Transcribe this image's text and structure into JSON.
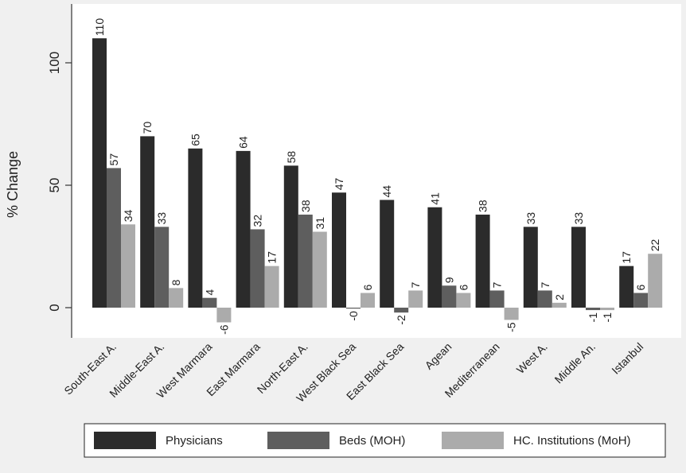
{
  "chart_data": {
    "type": "bar",
    "ylabel": "% Change",
    "ylim": [
      -12,
      120
    ],
    "yticks": [
      0,
      50,
      100
    ],
    "grid": false,
    "legend_position": "bottom",
    "categories": [
      "South-East A.",
      "Middle-East A.",
      "West Marmara",
      "East Marmara",
      "North-East A.",
      "West Black Sea",
      "East Black Sea",
      "Agean",
      "Mediterranean",
      "West A.",
      "Middle An.",
      "Istanbul"
    ],
    "series": [
      {
        "name": "Physicians",
        "color": "#2b2b2b",
        "values": [
          110,
          70,
          65,
          64,
          58,
          47,
          44,
          41,
          38,
          33,
          33,
          17
        ],
        "labels": [
          "110",
          "70",
          "65",
          "64",
          "58",
          "47",
          "44",
          "41",
          "38",
          "33",
          "33",
          "17"
        ]
      },
      {
        "name": "Beds (MOH)",
        "color": "#5e5e5e",
        "values": [
          57,
          33,
          4,
          32,
          38,
          -0.4,
          -2,
          9,
          7,
          7,
          -1,
          6
        ],
        "labels": [
          "57",
          "33",
          "4",
          "32",
          "38",
          "-0",
          "-2",
          "9",
          "7",
          "7",
          "-1",
          "6"
        ]
      },
      {
        "name": "HC. Institutions (MoH)",
        "color": "#ababab",
        "values": [
          34,
          8,
          -6,
          17,
          31,
          6,
          7,
          6,
          -5,
          2,
          -1,
          22
        ],
        "labels": [
          "34",
          "8",
          "-6",
          "17",
          "31",
          "6",
          "7",
          "6",
          "-5",
          "2",
          "-1",
          "22"
        ]
      }
    ]
  }
}
